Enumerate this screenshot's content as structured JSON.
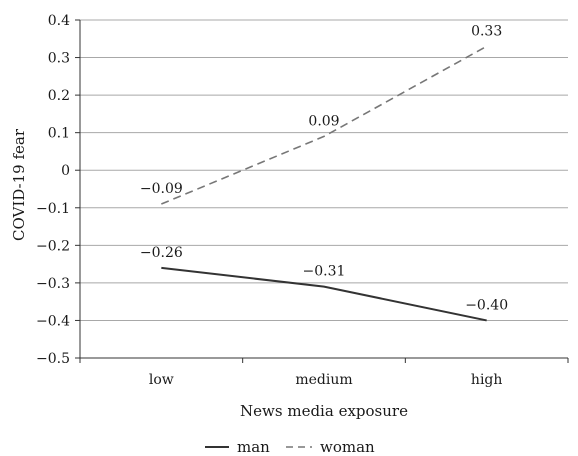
{
  "chart_data": {
    "type": "line",
    "title": "",
    "xlabel": "News media exposure",
    "ylabel": "COVID-19 fear",
    "categories": [
      "low",
      "medium",
      "high"
    ],
    "ylim": [
      -0.5,
      0.4
    ],
    "y_ticks": [
      "0.4",
      "0.3",
      "0.2",
      "0.1",
      "0",
      "−0.1",
      "−0.2",
      "−0.3",
      "−0.4",
      "−0.5"
    ],
    "y_tick_values": [
      0.4,
      0.3,
      0.2,
      0.1,
      0,
      -0.1,
      -0.2,
      -0.3,
      -0.4,
      -0.5
    ],
    "grid": "horizontal",
    "legend_position": "bottom-center",
    "series": [
      {
        "name": "man",
        "values": [
          -0.26,
          -0.31,
          -0.4
        ],
        "labels": [
          "−0.26",
          "−0.31",
          "−0.40"
        ],
        "style": "solid",
        "color": "#333333"
      },
      {
        "name": "woman",
        "values": [
          -0.09,
          0.09,
          0.33
        ],
        "labels": [
          "−0.09",
          "0.09",
          "0.33"
        ],
        "style": "dashed",
        "color": "#777777"
      }
    ]
  }
}
